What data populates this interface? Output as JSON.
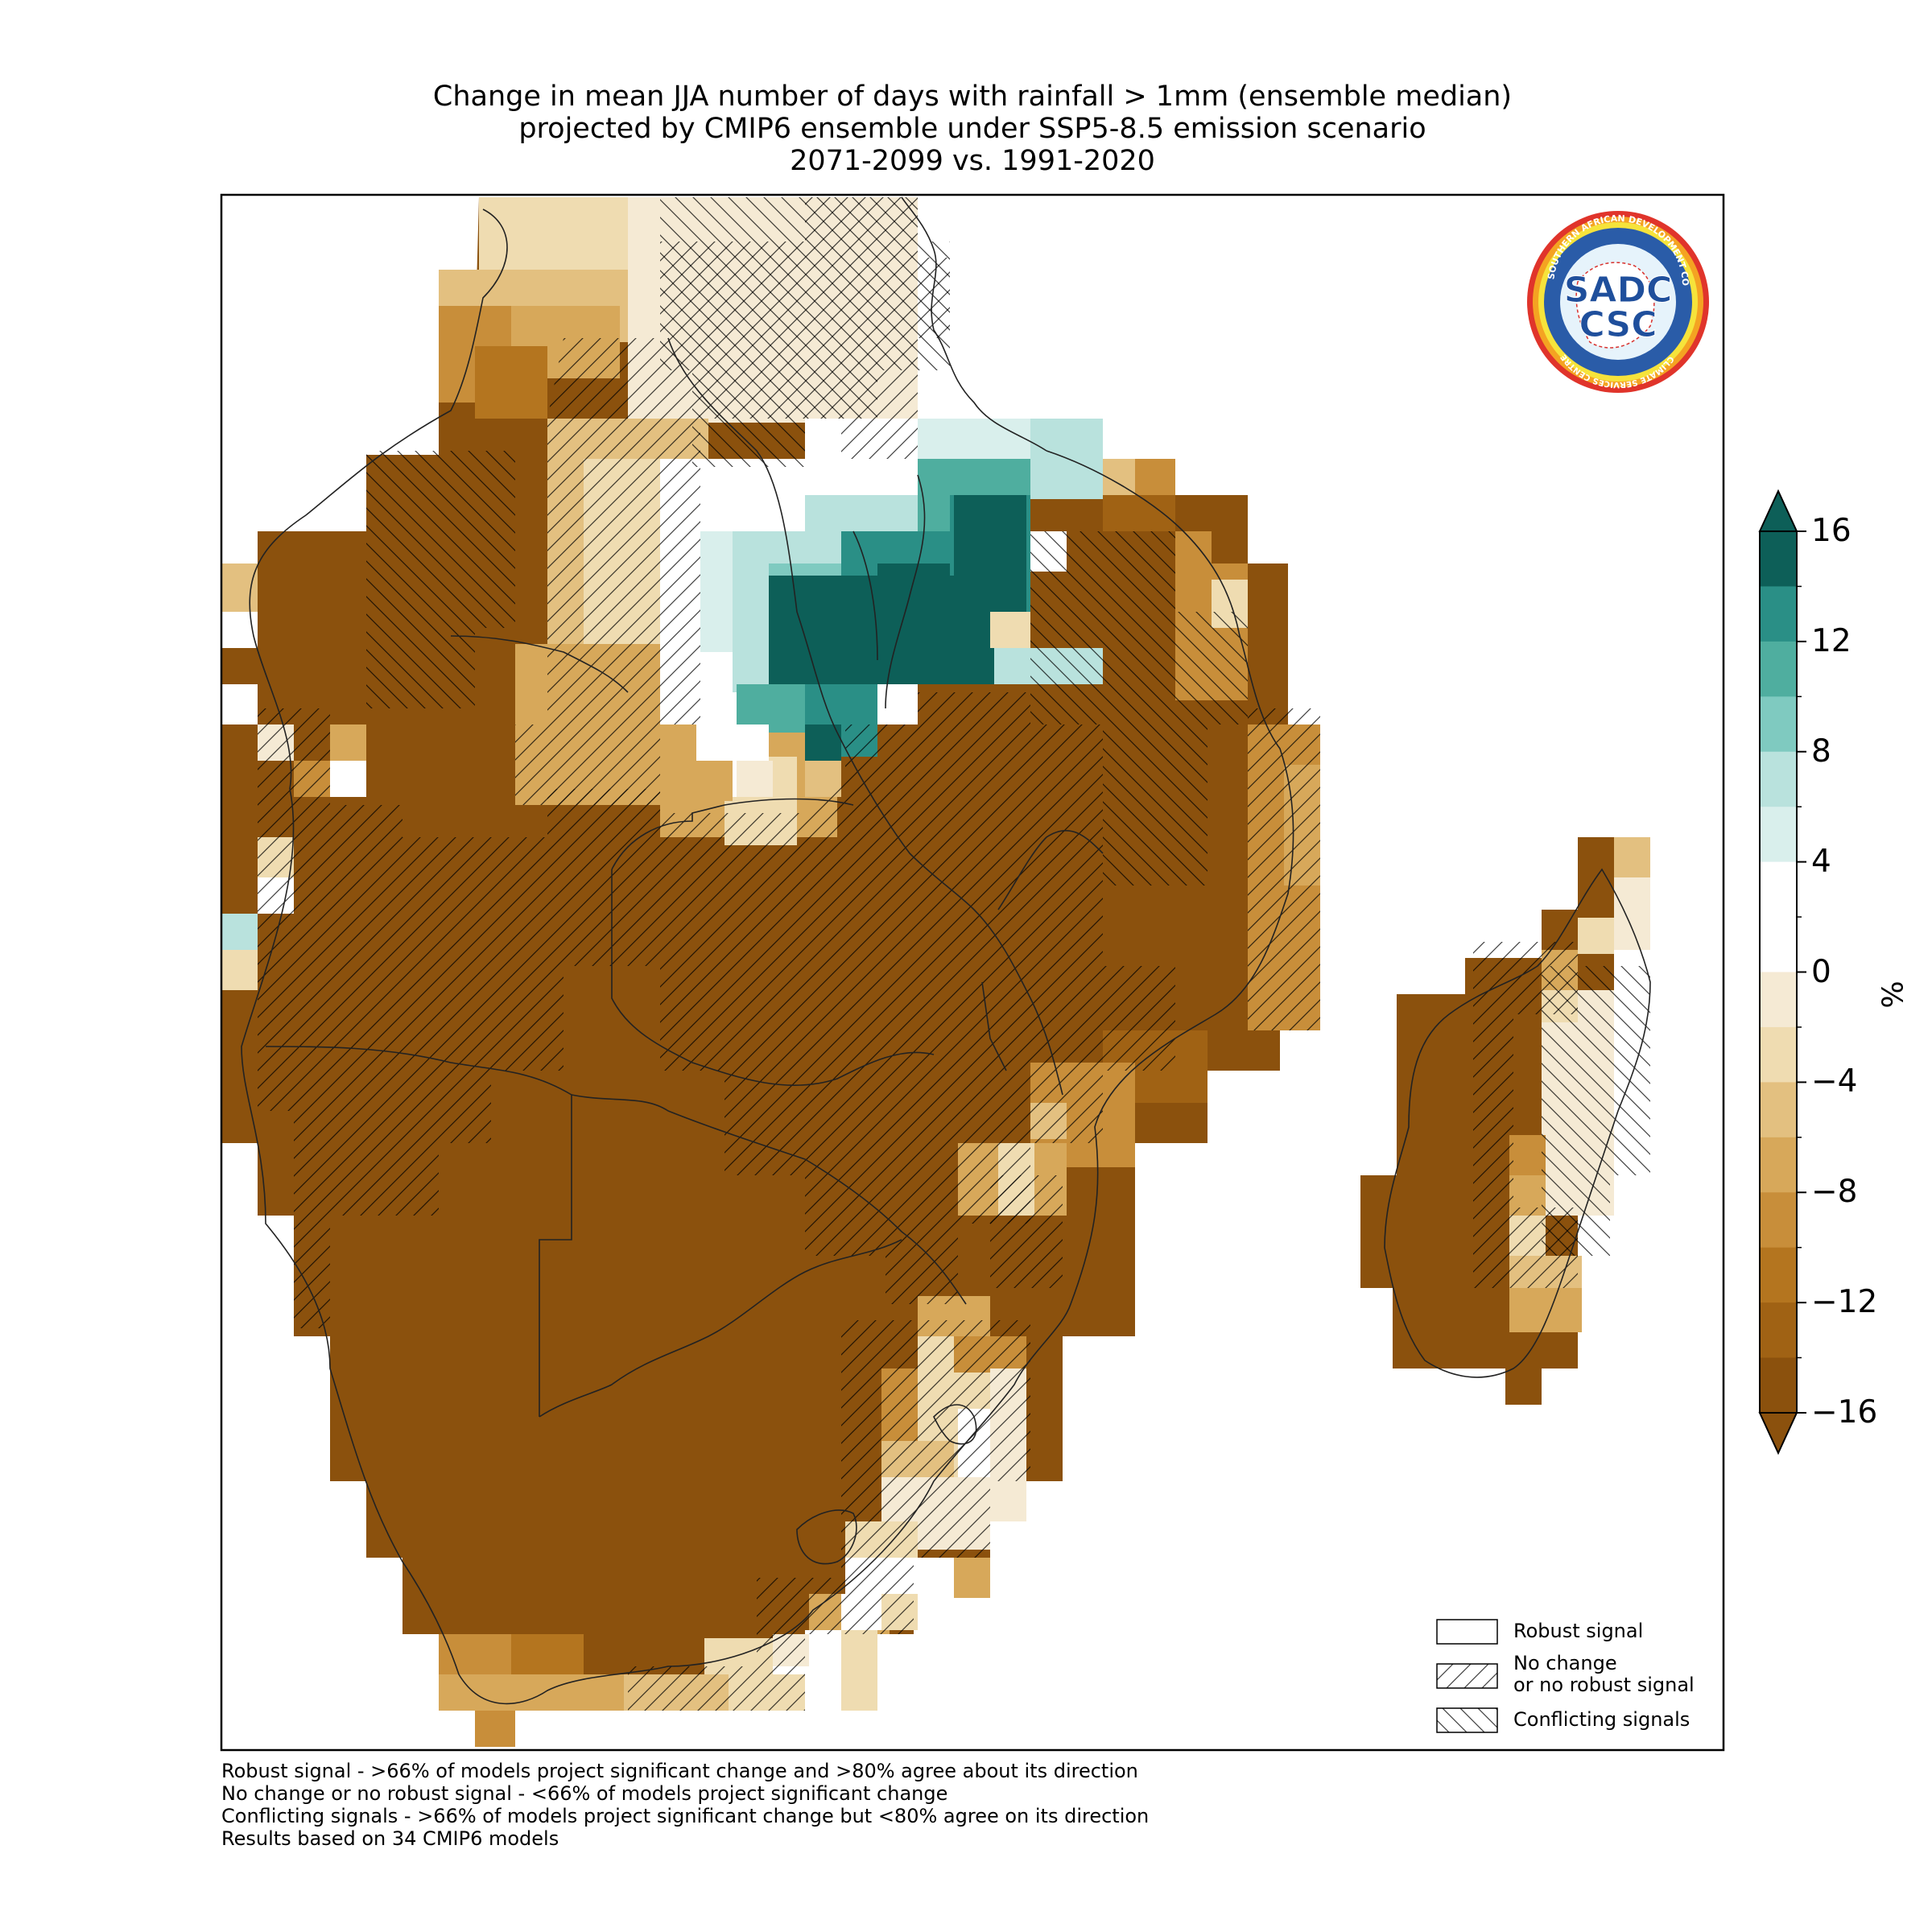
{
  "title": {
    "line1": "Change in mean JJA number of days with rainfall > 1mm (ensemble median)",
    "line2": "projected by CMIP6 ensemble under SSP5-8.5 emission scenario",
    "line3": "2071-2099 vs. 1991-2020"
  },
  "logo": {
    "ring_text": "SOUTHERN AFRICAN DEVELOPMENT COMMUNITY",
    "lower_ring_text": "CLIMATE SERVICES CENTRE",
    "initials_top": "SADC",
    "initials_bottom": "CSC"
  },
  "legend": {
    "robust": "Robust signal",
    "no_change_line1": "No change",
    "no_change_line2": "or no robust signal",
    "conflicting": "Conflicting signals"
  },
  "colorbar": {
    "units": "%",
    "ticks": [
      "16",
      "12",
      "8",
      "4",
      "0",
      "−4",
      "−8",
      "−12",
      "−16"
    ],
    "colors": [
      "#0d5f58",
      "#2a8f86",
      "#4fae9f",
      "#7fcac0",
      "#b9e2dd",
      "#d9efec",
      "#ffffff",
      "#ffffff",
      "#f5ead4",
      "#efdcb1",
      "#e3c080",
      "#d7a85a",
      "#c88e3a",
      "#b4751f",
      "#a06214",
      "#8b510d"
    ]
  },
  "footnotes": {
    "line1": "Robust signal - >66% of models project significant change and >80% agree about its direction",
    "line2": "No change or no robust signal - <66% of models project significant change",
    "line3": "Conflicting signals - >66% of models project significant change but <80% agree on its direction",
    "line4": "Results based on 34 CMIP6 models"
  }
}
